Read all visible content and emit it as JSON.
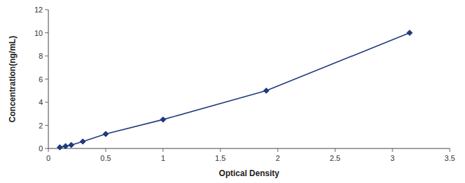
{
  "chart_data": {
    "type": "line",
    "x": [
      0.1,
      0.15,
      0.2,
      0.3,
      0.5,
      1.0,
      1.9,
      3.15
    ],
    "values": [
      0.1,
      0.2,
      0.3,
      0.6,
      1.25,
      2.5,
      5.0,
      10.0
    ],
    "color": "#1F3A7D",
    "marker": "diamond",
    "xlabel": "Optical Density",
    "ylabel": "Concentration(ng/mL)",
    "xlim": [
      0,
      3.5
    ],
    "ylim": [
      0,
      12
    ],
    "xticks": [
      0,
      0.5,
      1,
      1.5,
      2,
      2.5,
      3,
      3.5
    ],
    "yticks": [
      0,
      2,
      4,
      6,
      8,
      10,
      12
    ]
  }
}
